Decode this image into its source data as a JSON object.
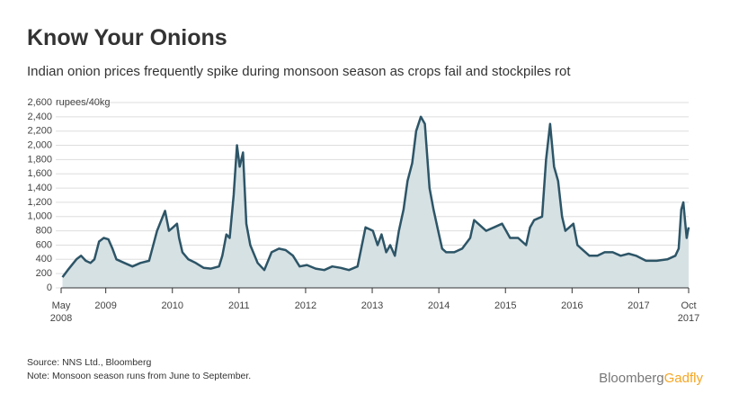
{
  "chart_data": {
    "type": "area",
    "title": "Know Your Onions",
    "subtitle": "Indian onion prices frequently spike during monsoon season as crops fail and stockpiles rot",
    "y_unit": "rupees/40kg",
    "color": "#2d5567",
    "fill": "#d6e1e4",
    "grid": true,
    "xlim": [
      2008.33,
      2017.75
    ],
    "xticks": [
      {
        "value": 2008.33,
        "label": "May 2008"
      },
      2009,
      2010,
      2011,
      2012,
      2013,
      2014,
      2015,
      2016,
      2017,
      {
        "value": 2017.75,
        "label": "Oct 2017"
      }
    ],
    "ylim": [
      0,
      2600
    ],
    "yticks": [
      0,
      200,
      400,
      600,
      800,
      {
        "value": 1000,
        "label": "1,000"
      },
      {
        "value": 1200,
        "label": "1,200"
      },
      {
        "value": 1400,
        "label": "1,400"
      },
      {
        "value": 1600,
        "label": "1,600"
      },
      {
        "value": 1800,
        "label": "1,800"
      },
      {
        "value": 2000,
        "label": "2,000"
      },
      {
        "value": 2200,
        "label": "2,200"
      },
      {
        "value": 2400,
        "label": "2,400"
      },
      {
        "value": 2600,
        "label": "2,600"
      }
    ],
    "x": [
      2008.35,
      2008.43,
      2008.56,
      2008.63,
      2008.7,
      2008.77,
      2008.83,
      2008.9,
      2008.97,
      2009.04,
      2009.1,
      2009.16,
      2009.28,
      2009.4,
      2009.52,
      2009.65,
      2009.77,
      2009.89,
      2009.95,
      2010.01,
      2010.07,
      2010.1,
      2010.15,
      2010.24,
      2010.35,
      2010.47,
      2010.58,
      2010.7,
      2010.75,
      2010.81,
      2010.86,
      2010.92,
      2010.97,
      2011.01,
      2011.06,
      2011.11,
      2011.17,
      2011.28,
      2011.38,
      2011.49,
      2011.6,
      2011.7,
      2011.81,
      2011.91,
      2012.02,
      2012.15,
      2012.28,
      2012.4,
      2012.53,
      2012.65,
      2012.78,
      2012.9,
      2013.01,
      2013.08,
      2013.14,
      2013.21,
      2013.27,
      2013.34,
      2013.4,
      2013.47,
      2013.53,
      2013.6,
      2013.66,
      2013.73,
      2013.79,
      2013.86,
      2013.92,
      2013.99,
      2014.05,
      2014.11,
      2014.23,
      2014.35,
      2014.47,
      2014.53,
      2014.59,
      2014.71,
      2014.83,
      2014.95,
      2015.07,
      2015.19,
      2015.31,
      2015.37,
      2015.43,
      2015.55,
      2015.61,
      2015.67,
      2015.73,
      2015.79,
      2015.85,
      2015.9,
      2016.02,
      2016.08,
      2016.14,
      2016.26,
      2016.38,
      2016.49,
      2016.61,
      2016.73,
      2016.85,
      2016.96,
      2017.11,
      2017.27,
      2017.43,
      2017.55,
      2017.6,
      2017.64,
      2017.67,
      2017.7,
      2017.72,
      2017.75
    ],
    "values": [
      150,
      250,
      400,
      450,
      380,
      350,
      400,
      650,
      700,
      680,
      550,
      400,
      350,
      300,
      350,
      380,
      800,
      1080,
      800,
      850,
      900,
      700,
      500,
      400,
      350,
      280,
      270,
      300,
      450,
      750,
      700,
      1300,
      2000,
      1700,
      1900,
      900,
      600,
      350,
      250,
      500,
      550,
      530,
      450,
      300,
      320,
      270,
      250,
      300,
      280,
      250,
      300,
      850,
      800,
      600,
      750,
      500,
      600,
      450,
      800,
      1100,
      1500,
      1750,
      2200,
      2400,
      2300,
      1400,
      1100,
      800,
      550,
      500,
      500,
      550,
      700,
      950,
      900,
      800,
      850,
      900,
      700,
      700,
      600,
      850,
      950,
      1000,
      1800,
      2300,
      1700,
      1500,
      1000,
      800,
      900,
      600,
      550,
      450,
      450,
      500,
      500,
      450,
      480,
      450,
      380,
      380,
      400,
      450,
      550,
      1100,
      1200,
      900,
      700,
      850
    ],
    "notes": [
      "Source: NNS Ltd., Bloomberg",
      "Note: Monsoon season runs from June to September."
    ]
  },
  "logo": {
    "brand": "Bloomberg",
    "product": "Gadfly"
  }
}
